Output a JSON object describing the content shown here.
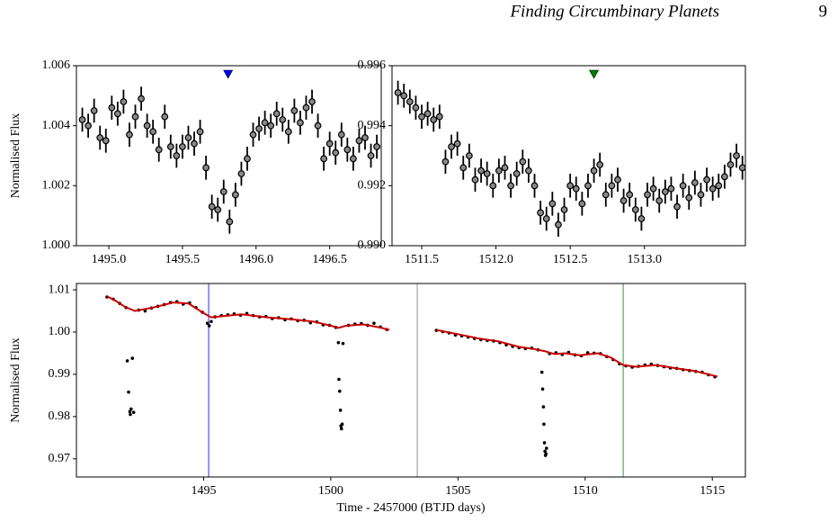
{
  "header": {
    "title": "Finding Circumbinary Planets",
    "page": "9"
  },
  "chart_data": [
    {
      "type": "errorbar",
      "ylabel": "Normalised Flux",
      "xlim": [
        1494.78,
        1496.85
      ],
      "ylim": [
        1.0,
        1.006
      ],
      "xticks": [
        {
          "value": 1495.0,
          "label": "1495.0"
        },
        1495.5,
        {
          "value": 1496.0,
          "label": "1496.0"
        },
        1496.5
      ],
      "yticks": [
        {
          "value": 1.0,
          "label": "1.000"
        },
        {
          "value": 1.002,
          "label": "1.002"
        },
        {
          "value": 1.004,
          "label": "1.004"
        },
        {
          "value": 1.006,
          "label": "1.006"
        }
      ],
      "yerr": 0.0004,
      "color": "#888888",
      "marker": {
        "x": 1495.81,
        "y": 1.0057,
        "color": "#0000ff"
      },
      "x": [
        1494.82,
        1494.86,
        1494.9,
        1494.94,
        1494.98,
        1495.02,
        1495.06,
        1495.1,
        1495.14,
        1495.18,
        1495.22,
        1495.26,
        1495.3,
        1495.34,
        1495.38,
        1495.42,
        1495.46,
        1495.5,
        1495.54,
        1495.58,
        1495.62,
        1495.66,
        1495.7,
        1495.74,
        1495.78,
        1495.82,
        1495.86,
        1495.9,
        1495.94,
        1495.98,
        1496.02,
        1496.06,
        1496.1,
        1496.14,
        1496.18,
        1496.22,
        1496.26,
        1496.3,
        1496.34,
        1496.38,
        1496.42,
        1496.46,
        1496.5,
        1496.54,
        1496.58,
        1496.62,
        1496.66,
        1496.7,
        1496.74,
        1496.78,
        1496.82
      ],
      "values": [
        1.0042,
        1.004,
        1.0045,
        1.0036,
        1.0035,
        1.0046,
        1.0044,
        1.0048,
        1.0037,
        1.0043,
        1.0049,
        1.004,
        1.0038,
        1.0032,
        1.0043,
        1.0033,
        1.003,
        1.0033,
        1.0036,
        1.0034,
        1.0038,
        1.0026,
        1.0013,
        1.0012,
        1.0018,
        1.0008,
        1.0017,
        1.0024,
        1.0029,
        1.0037,
        1.0039,
        1.0041,
        1.004,
        1.0044,
        1.0042,
        1.0038,
        1.0045,
        1.0041,
        1.0046,
        1.0048,
        1.004,
        1.0029,
        1.0034,
        1.0031,
        1.0037,
        1.0032,
        1.0029,
        1.0035,
        1.0036,
        1.003,
        1.0033
      ]
    },
    {
      "type": "errorbar",
      "xlim": [
        1511.3,
        1513.68
      ],
      "ylim": [
        0.99,
        0.996
      ],
      "xticks": [
        1511.5,
        {
          "value": 1512.0,
          "label": "1512.0"
        },
        1512.5,
        {
          "value": 1513.0,
          "label": "1513.0"
        }
      ],
      "yticks": [
        {
          "value": 0.99,
          "label": "0.990"
        },
        0.992,
        0.994,
        0.996
      ],
      "yerr": 0.0004,
      "color": "#888888",
      "marker": {
        "x": 1512.66,
        "y": 0.9957,
        "color": "#008000"
      },
      "x": [
        1511.34,
        1511.38,
        1511.42,
        1511.46,
        1511.5,
        1511.54,
        1511.58,
        1511.62,
        1511.66,
        1511.7,
        1511.74,
        1511.78,
        1511.82,
        1511.86,
        1511.9,
        1511.94,
        1511.98,
        1512.02,
        1512.06,
        1512.1,
        1512.14,
        1512.18,
        1512.22,
        1512.26,
        1512.3,
        1512.34,
        1512.38,
        1512.42,
        1512.46,
        1512.5,
        1512.54,
        1512.58,
        1512.62,
        1512.66,
        1512.7,
        1512.74,
        1512.78,
        1512.82,
        1512.86,
        1512.9,
        1512.94,
        1512.98,
        1513.02,
        1513.06,
        1513.1,
        1513.14,
        1513.18,
        1513.22,
        1513.26,
        1513.3,
        1513.34,
        1513.38,
        1513.42,
        1513.46,
        1513.5,
        1513.54,
        1513.58,
        1513.62,
        1513.66
      ],
      "values": [
        0.9951,
        0.995,
        0.9948,
        0.9946,
        0.9943,
        0.9944,
        0.9942,
        0.9943,
        0.9928,
        0.9933,
        0.9934,
        0.9926,
        0.993,
        0.9922,
        0.9925,
        0.9924,
        0.992,
        0.9925,
        0.9926,
        0.992,
        0.9924,
        0.9928,
        0.9925,
        0.992,
        0.9911,
        0.9909,
        0.9914,
        0.9907,
        0.9912,
        0.992,
        0.9919,
        0.9914,
        0.992,
        0.9925,
        0.9927,
        0.9917,
        0.992,
        0.9922,
        0.9915,
        0.9917,
        0.9912,
        0.9909,
        0.9917,
        0.9919,
        0.9915,
        0.9918,
        0.9919,
        0.9913,
        0.992,
        0.9916,
        0.9921,
        0.9917,
        0.9922,
        0.9919,
        0.992,
        0.9923,
        0.9927,
        0.993,
        0.9926
      ]
    },
    {
      "type": "scatter",
      "ylabel": "Normalised Flux",
      "xlabel": "Time - 2457000 (BTJD days)",
      "xlim": [
        1490.0,
        1516.3
      ],
      "ylim": [
        0.9657,
        1.0115
      ],
      "xticks": [
        1495,
        1500,
        1505,
        1510,
        1515
      ],
      "yticks": [
        {
          "value": 0.97,
          "label": "0.97"
        },
        {
          "value": 0.98,
          "label": "0.98"
        },
        {
          "value": 0.99,
          "label": "0.99"
        },
        {
          "value": 1.0,
          "label": "1.00"
        },
        {
          "value": 1.01,
          "label": "1.01"
        }
      ],
      "vlines": [
        {
          "x": 1495.2,
          "color": "#7b7bef"
        },
        {
          "x": 1503.4,
          "color": "#bbbbbb"
        },
        {
          "x": 1511.5,
          "color": "#7fbf7f"
        }
      ],
      "series": [
        {
          "color": "#000000",
          "x": [
            1491.2,
            1491.45,
            1491.7,
            1491.95,
            1492.45,
            1492.7,
            1492.95,
            1493.2,
            1493.45,
            1493.7,
            1493.95,
            1494.2,
            1494.45,
            1494.7,
            1494.95,
            1495.45,
            1495.7,
            1495.95,
            1496.2,
            1496.45,
            1496.7,
            1496.95,
            1497.2,
            1497.45,
            1497.7,
            1497.95,
            1498.2,
            1498.45,
            1498.7,
            1498.95,
            1499.2,
            1499.45,
            1499.7,
            1499.95,
            1500.2,
            1500.7,
            1500.95,
            1501.2,
            1501.45,
            1501.7,
            1501.95,
            1502.2,
            1504.15,
            1504.4,
            1504.65,
            1504.9,
            1505.15,
            1505.4,
            1505.65,
            1505.9,
            1506.15,
            1506.4,
            1506.65,
            1506.9,
            1507.15,
            1507.4,
            1507.65,
            1507.9,
            1508.15,
            1508.6,
            1508.85,
            1509.1,
            1509.35,
            1509.6,
            1509.85,
            1510.1,
            1510.35,
            1510.6,
            1510.85,
            1511.1,
            1511.35,
            1511.6,
            1511.85,
            1512.1,
            1512.35,
            1512.6,
            1512.85,
            1513.1,
            1513.35,
            1513.6,
            1513.85,
            1514.1,
            1514.35,
            1514.6,
            1514.85,
            1515.1
          ],
          "values": [
            1.0083,
            1.0078,
            1.0068,
            1.0058,
            1.0052,
            1.005,
            1.0057,
            1.0061,
            1.0065,
            1.007,
            1.0072,
            1.0066,
            1.0069,
            1.0058,
            1.0047,
            1.0036,
            1.0039,
            1.0041,
            1.0043,
            1.004,
            1.0044,
            1.0039,
            1.0036,
            1.0037,
            1.0032,
            1.0034,
            1.0029,
            1.0031,
            1.0027,
            1.0028,
            1.0022,
            1.0024,
            1.0017,
            1.0016,
            1.0011,
            1.0016,
            1.0019,
            1.002,
            1.0016,
            1.0021,
            1.0012,
            1.0006,
            1.0004,
            1.0001,
            0.9998,
            0.9993,
            0.9991,
            0.9988,
            0.9985,
            0.9982,
            0.998,
            0.9979,
            0.9975,
            0.997,
            0.9966,
            0.9963,
            0.9961,
            0.9962,
            0.9958,
            0.9949,
            0.9951,
            0.9947,
            0.9952,
            0.9946,
            0.9944,
            0.9951,
            0.995,
            0.9949,
            0.9942,
            0.9935,
            0.9925,
            0.992,
            0.9917,
            0.9919,
            0.9922,
            0.9924,
            0.9921,
            0.9918,
            0.9915,
            0.9914,
            0.9911,
            0.9909,
            0.9907,
            0.9905,
            0.9899,
            0.9894
          ]
        },
        {
          "color": "#000000",
          "x": [
            1492.0,
            1492.05,
            1492.1,
            1492.12,
            1492.15,
            1492.2,
            1492.25,
            1495.15,
            1495.22,
            1495.3,
            1500.3,
            1500.32,
            1500.35,
            1500.38,
            1500.4,
            1500.42,
            1500.45,
            1500.48,
            1508.3,
            1508.33,
            1508.36,
            1508.38,
            1508.4,
            1508.42,
            1508.44,
            1508.46,
            1508.48
          ],
          "values": [
            0.9932,
            0.9858,
            0.9812,
            0.9805,
            0.9818,
            0.9938,
            0.981,
            1.0021,
            1.0015,
            1.0025,
            0.9975,
            0.9888,
            0.986,
            0.9815,
            0.9778,
            0.9771,
            0.9782,
            0.9973,
            0.9905,
            0.9865,
            0.9823,
            0.9782,
            0.9738,
            0.9718,
            0.9708,
            0.9712,
            0.9725
          ]
        },
        {
          "color": "#cc0000",
          "kind": "line",
          "x": [
            1491.2,
            1491.6,
            1491.9,
            1492.3,
            1493.0,
            1493.8,
            1494.4,
            1495.0,
            1495.3,
            1495.8,
            1496.5,
            1497.5,
            1498.5,
            1499.3,
            1500.0,
            1500.3,
            1500.6,
            1501.3,
            1502.0,
            1502.3,
            1503.3,
            1504.15,
            1505.0,
            1505.8,
            1506.6,
            1507.4,
            1508.0,
            1508.4,
            1508.8,
            1509.2,
            1509.8,
            1510.5,
            1511.0,
            1511.5,
            1512.0,
            1512.8,
            1513.5,
            1514.3,
            1515.2
          ],
          "values": [
            1.0085,
            1.0072,
            1.006,
            1.005,
            1.0058,
            1.007,
            1.0068,
            1.0045,
            1.0035,
            1.0038,
            1.0042,
            1.0035,
            1.003,
            1.0025,
            1.0015,
            1.001,
            1.0015,
            1.0018,
            1.001,
            1.0005,
            null,
            1.0005,
            0.9995,
            0.9985,
            0.9978,
            0.9965,
            0.996,
            0.9955,
            0.9948,
            0.995,
            0.9945,
            0.995,
            0.994,
            0.9922,
            0.9918,
            0.9922,
            0.9915,
            0.9908,
            0.9895
          ]
        }
      ]
    }
  ]
}
